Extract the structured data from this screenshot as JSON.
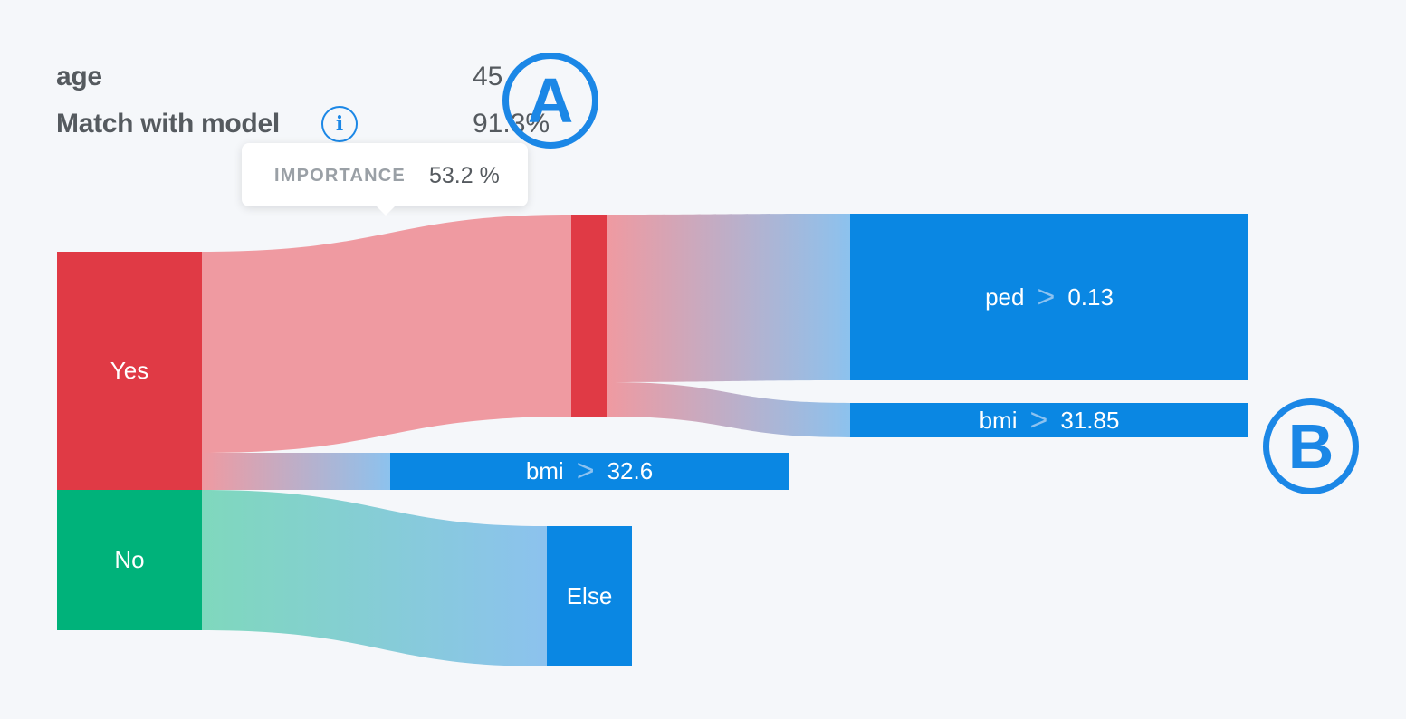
{
  "info": {
    "age_label": "age",
    "age_value": "45",
    "match_label": "Match with model",
    "match_value": "91.3%",
    "info_icon_glyph": "i"
  },
  "markers": {
    "a": "A",
    "b": "B"
  },
  "tooltip": {
    "label": "IMPORTANCE",
    "value": "53.2 %"
  },
  "nodes": {
    "yes": "Yes",
    "no": "No",
    "ped": {
      "feature": "ped",
      "op": ">",
      "threshold": "0.13"
    },
    "bmi_top": {
      "feature": "bmi",
      "op": ">",
      "threshold": "31.85"
    },
    "bmi_mid": {
      "feature": "bmi",
      "op": ">",
      "threshold": "32.6"
    },
    "else": "Else"
  },
  "colors": {
    "yes": "#e03a45",
    "no": "#00b27a",
    "rule": "#0a87e3",
    "accent": "#1b87e6"
  },
  "icons": [
    "info-icon"
  ]
}
